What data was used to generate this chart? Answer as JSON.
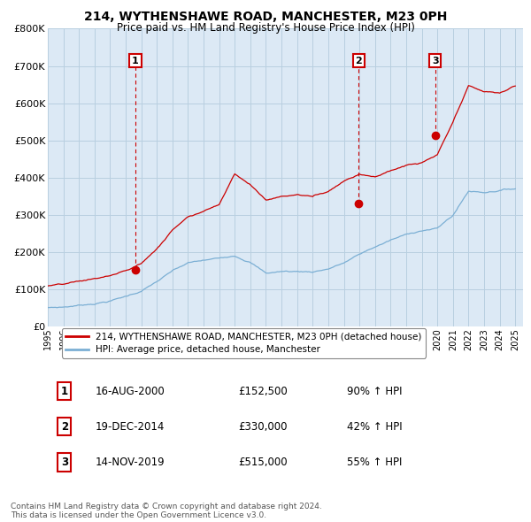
{
  "title": "214, WYTHENSHAWE ROAD, MANCHESTER, M23 0PH",
  "subtitle": "Price paid vs. HM Land Registry's House Price Index (HPI)",
  "xlim_start": 1995.0,
  "xlim_end": 2025.5,
  "ylim": [
    0,
    800000
  ],
  "yticks": [
    0,
    100000,
    200000,
    300000,
    400000,
    500000,
    600000,
    700000,
    800000
  ],
  "ytick_labels": [
    "£0",
    "£100K",
    "£200K",
    "£300K",
    "£400K",
    "£500K",
    "£600K",
    "£700K",
    "£800K"
  ],
  "xtick_years": [
    1995,
    1996,
    1997,
    1998,
    1999,
    2000,
    2001,
    2002,
    2003,
    2004,
    2005,
    2006,
    2007,
    2008,
    2009,
    2010,
    2011,
    2012,
    2013,
    2014,
    2015,
    2016,
    2017,
    2018,
    2019,
    2020,
    2021,
    2022,
    2023,
    2024,
    2025
  ],
  "red_line_color": "#cc0000",
  "blue_line_color": "#7bafd4",
  "chart_bg_color": "#dce9f5",
  "sale_marker_color": "#cc0000",
  "annotation_box_color": "#cc0000",
  "background_color": "#ffffff",
  "grid_color": "#b8cfe0",
  "sales": [
    {
      "num": 1,
      "year": 2000.62,
      "price": 152500,
      "label": "1"
    },
    {
      "num": 2,
      "year": 2014.96,
      "price": 330000,
      "label": "2"
    },
    {
      "num": 3,
      "year": 2019.87,
      "price": 515000,
      "label": "3"
    }
  ],
  "table_rows": [
    {
      "num": "1",
      "date": "16-AUG-2000",
      "price": "£152,500",
      "hpi": "90% ↑ HPI"
    },
    {
      "num": "2",
      "date": "19-DEC-2014",
      "price": "£330,000",
      "hpi": "42% ↑ HPI"
    },
    {
      "num": "3",
      "date": "14-NOV-2019",
      "price": "£515,000",
      "hpi": "55% ↑ HPI"
    }
  ],
  "legend_entries": [
    "214, WYTHENSHAWE ROAD, MANCHESTER, M23 0PH (detached house)",
    "HPI: Average price, detached house, Manchester"
  ],
  "footer": "Contains HM Land Registry data © Crown copyright and database right 2024.\nThis data is licensed under the Open Government Licence v3.0."
}
